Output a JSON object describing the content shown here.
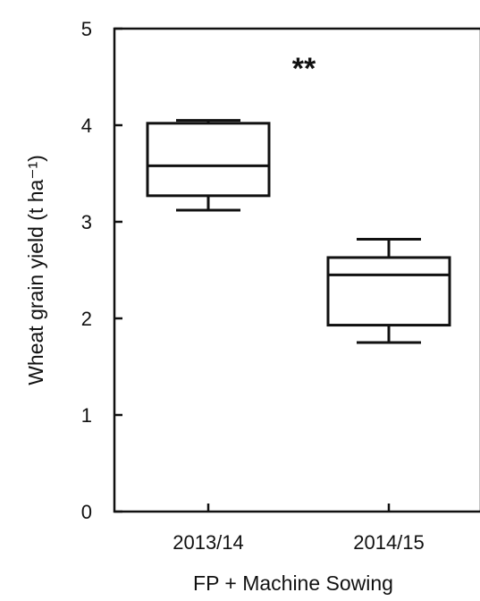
{
  "chart_data": {
    "type": "box",
    "xlabel": "FP + Machine Sowing",
    "ylabel": "Wheat grain yield (t ha⁻¹)",
    "ylim": [
      0,
      5
    ],
    "yticks": [
      "0",
      "1",
      "2",
      "3",
      "4",
      "5"
    ],
    "annotation": "**",
    "categories": [
      "2013/14",
      "2014/15"
    ],
    "boxes": [
      {
        "label": "2013/14",
        "min": 3.12,
        "q1": 3.27,
        "median": 3.58,
        "q3": 4.02,
        "max": 4.05
      },
      {
        "label": "2014/15",
        "min": 1.75,
        "q1": 1.93,
        "median": 2.45,
        "q3": 2.63,
        "max": 2.82
      }
    ],
    "grid": false,
    "legend": "none"
  }
}
